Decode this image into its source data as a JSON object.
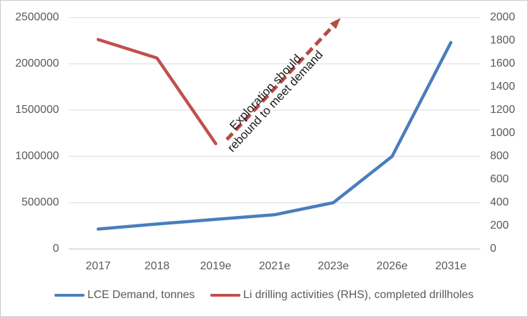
{
  "colors": {
    "blue_series": "#4A7EBB",
    "red_series": "#C0504D",
    "arrow": "#B84A45",
    "gridline": "#D9D9D9",
    "axis_line": "#BFBFBF",
    "tick_text": "#595959",
    "annotation_text": "#1a1a1a"
  },
  "chart_data": {
    "type": "line",
    "title": "",
    "categories": [
      "2017",
      "2018",
      "2019e",
      "2021e",
      "2023e",
      "2026e",
      "2031e"
    ],
    "series": [
      {
        "name": "LCE Demand, tonnes",
        "axis": "left",
        "color": "#4A7EBB",
        "values": [
          215000,
          270000,
          320000,
          370000,
          500000,
          1000000,
          2230000
        ]
      },
      {
        "name": "Li drilling activities (RHS), completed drillholes",
        "axis": "right",
        "color": "#C0504D",
        "values": [
          1810,
          1650,
          910,
          null,
          null,
          null,
          null
        ]
      }
    ],
    "y_left": {
      "min": 0,
      "max": 2500000,
      "step": 500000,
      "tick_labels": [
        "0",
        "500000",
        "1000000",
        "1500000",
        "2000000",
        "2500000"
      ]
    },
    "y_right": {
      "min": 0,
      "max": 2000,
      "step": 200,
      "tick_labels": [
        "0",
        "200",
        "400",
        "600",
        "800",
        "1000",
        "1200",
        "1400",
        "1600",
        "1800",
        "2000"
      ]
    },
    "grid": true,
    "legend_position": "bottom",
    "annotation": {
      "line1": "Exploration should",
      "line2": "rebound to meet demand",
      "arrow_style": "dashed"
    }
  }
}
